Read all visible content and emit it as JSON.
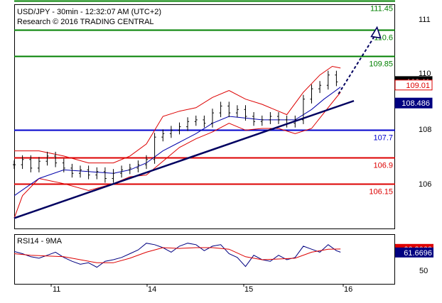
{
  "header": {
    "line1": "USD/JPY - 30min - 12:32:07 AM (UTC+2)",
    "line2": "Research © 2016 TRADING CENTRAL"
  },
  "colors": {
    "resistance": "#008000",
    "pivot": "#0000cc",
    "support": "#dd0000",
    "candles": "#000000",
    "bollinger": "#dd0000",
    "ma_blue": "#0000aa",
    "trendline": "#000060",
    "rsi": "#000080",
    "rsi_ma": "#dd0000"
  },
  "chart_data": [
    {
      "type": "candlestick",
      "title": "USD/JPY - 30min",
      "y_ticks": [
        "111",
        "110",
        "108",
        "106"
      ],
      "x_ticks": [
        "11",
        "14",
        "15",
        "16"
      ],
      "ylim": [
        104.85,
        111.35
      ],
      "levels": [
        {
          "label": "111.45",
          "value": 111.45,
          "kind": "resistance"
        },
        {
          "label": "110.6",
          "value": 110.6,
          "kind": "resistance"
        },
        {
          "label": "109.85",
          "value": 109.85,
          "kind": "resistance"
        },
        {
          "label": "107.7",
          "value": 107.7,
          "kind": "pivot"
        },
        {
          "label": "106.9",
          "value": 106.9,
          "kind": "support"
        },
        {
          "label": "106.15",
          "value": 106.15,
          "kind": "support"
        }
      ],
      "price_boxes": [
        {
          "label": "109.11",
          "value": 109.11,
          "bg": "#000000",
          "fg": "#ffffff"
        },
        {
          "label": "109.01",
          "value": 109.01,
          "bg": "#ffffff",
          "fg": "#dd0000"
        },
        {
          "label": "108.486",
          "value": 108.486,
          "bg": "#000080",
          "fg": "#ffffff"
        }
      ],
      "trendline": {
        "from": [
          0,
          105.15
        ],
        "to": [
          160,
          108.55
        ]
      },
      "forecast_arrow": {
        "from": [
          157,
          108.75
        ],
        "to": [
          175,
          110.6
        ]
      },
      "series": [
        {
          "kind": "candles",
          "points": [
            [
              0,
              106.7
            ],
            [
              4,
              106.85
            ],
            [
              8,
              106.6
            ],
            [
              12,
              106.8
            ],
            [
              16,
              106.95
            ],
            [
              20,
              106.75
            ],
            [
              24,
              106.6
            ],
            [
              28,
              106.45
            ],
            [
              32,
              106.55
            ],
            [
              36,
              106.4
            ],
            [
              40,
              106.5
            ],
            [
              44,
              106.3
            ],
            [
              48,
              106.45
            ],
            [
              52,
              106.55
            ],
            [
              56,
              106.6
            ],
            [
              60,
              106.7
            ],
            [
              64,
              106.85
            ],
            [
              68,
              107.5
            ],
            [
              72,
              107.6
            ],
            [
              76,
              107.7
            ],
            [
              80,
              107.8
            ],
            [
              84,
              107.95
            ],
            [
              88,
              108.0
            ],
            [
              92,
              107.9
            ],
            [
              96,
              108.2
            ],
            [
              100,
              108.4
            ],
            [
              104,
              108.2
            ],
            [
              108,
              108.3
            ],
            [
              112,
              108.1
            ],
            [
              116,
              107.95
            ],
            [
              120,
              108.0
            ],
            [
              124,
              108.1
            ],
            [
              128,
              108.0
            ],
            [
              132,
              107.9
            ],
            [
              136,
              108.0
            ],
            [
              140,
              108.6
            ],
            [
              144,
              108.9
            ],
            [
              148,
              109.0
            ],
            [
              152,
              109.3
            ],
            [
              156,
              109.1
            ]
          ]
        },
        {
          "kind": "bollinger_upper",
          "points": [
            [
              0,
              107.1
            ],
            [
              12,
              107.1
            ],
            [
              24,
              106.95
            ],
            [
              36,
              106.75
            ],
            [
              48,
              106.75
            ],
            [
              56,
              106.95
            ],
            [
              64,
              107.3
            ],
            [
              72,
              108.1
            ],
            [
              80,
              108.25
            ],
            [
              88,
              108.35
            ],
            [
              96,
              108.65
            ],
            [
              104,
              108.85
            ],
            [
              112,
              108.6
            ],
            [
              120,
              108.45
            ],
            [
              132,
              108.15
            ],
            [
              140,
              108.8
            ],
            [
              148,
              109.3
            ],
            [
              154,
              109.55
            ],
            [
              158,
              109.5
            ]
          ]
        },
        {
          "kind": "bollinger_lower",
          "points": [
            [
              0,
              105.15
            ],
            [
              4,
              105.8
            ],
            [
              12,
              106.3
            ],
            [
              24,
              106.15
            ],
            [
              36,
              105.95
            ],
            [
              48,
              106.15
            ],
            [
              56,
              106.35
            ],
            [
              64,
              106.4
            ],
            [
              72,
              106.8
            ],
            [
              80,
              107.2
            ],
            [
              88,
              107.45
            ],
            [
              96,
              107.65
            ],
            [
              104,
              107.9
            ],
            [
              112,
              107.7
            ],
            [
              120,
              107.75
            ],
            [
              128,
              107.75
            ],
            [
              136,
              107.6
            ],
            [
              144,
              107.75
            ],
            [
              150,
              108.2
            ],
            [
              158,
              108.8
            ]
          ]
        },
        {
          "kind": "moving_average",
          "points": [
            [
              0,
              105.8
            ],
            [
              12,
              106.3
            ],
            [
              24,
              106.55
            ],
            [
              36,
              106.5
            ],
            [
              48,
              106.45
            ],
            [
              56,
              106.55
            ],
            [
              64,
              106.75
            ],
            [
              72,
              107.1
            ],
            [
              80,
              107.35
            ],
            [
              88,
              107.6
            ],
            [
              96,
              107.9
            ],
            [
              104,
              108.1
            ],
            [
              112,
              108.05
            ],
            [
              120,
              108.0
            ],
            [
              128,
              108.0
            ],
            [
              136,
              108.0
            ],
            [
              144,
              108.3
            ],
            [
              150,
              108.6
            ],
            [
              158,
              108.95
            ]
          ]
        }
      ]
    },
    {
      "type": "line",
      "title": "RSI14 - 9MA",
      "y_ticks": [
        "50"
      ],
      "ylim": [
        20,
        85
      ],
      "value_boxes": [
        {
          "label": "66.3063",
          "value": 66.3063,
          "bg": "#dd0000",
          "fg": "#ffffff"
        },
        {
          "label": "61.6696",
          "value": 61.6696,
          "bg": "#000080",
          "fg": "#ffffff"
        }
      ],
      "series": [
        {
          "name": "RSI14",
          "points": [
            [
              0,
              63
            ],
            [
              4,
              60
            ],
            [
              8,
              56
            ],
            [
              12,
              54
            ],
            [
              16,
              58
            ],
            [
              20,
              62
            ],
            [
              24,
              55
            ],
            [
              28,
              50
            ],
            [
              32,
              46
            ],
            [
              36,
              48
            ],
            [
              40,
              42
            ],
            [
              44,
              50
            ],
            [
              48,
              52
            ],
            [
              52,
              55
            ],
            [
              56,
              60
            ],
            [
              60,
              65
            ],
            [
              64,
              74
            ],
            [
              68,
              72
            ],
            [
              72,
              68
            ],
            [
              76,
              62
            ],
            [
              80,
              70
            ],
            [
              84,
              74
            ],
            [
              88,
              72
            ],
            [
              92,
              64
            ],
            [
              96,
              70
            ],
            [
              100,
              72
            ],
            [
              104,
              60
            ],
            [
              108,
              55
            ],
            [
              112,
              43
            ],
            [
              116,
              58
            ],
            [
              120,
              52
            ],
            [
              124,
              50
            ],
            [
              128,
              58
            ],
            [
              132,
              52
            ],
            [
              136,
              55
            ],
            [
              140,
              70
            ],
            [
              144,
              66
            ],
            [
              148,
              62
            ],
            [
              152,
              72
            ],
            [
              156,
              64
            ],
            [
              158,
              62
            ]
          ]
        },
        {
          "name": "9MA",
          "points": [
            [
              0,
              60
            ],
            [
              8,
              58
            ],
            [
              16,
              57
            ],
            [
              24,
              56
            ],
            [
              32,
              52
            ],
            [
              40,
              48
            ],
            [
              48,
              48
            ],
            [
              56,
              54
            ],
            [
              64,
              62
            ],
            [
              72,
              68
            ],
            [
              80,
              67
            ],
            [
              88,
              68
            ],
            [
              96,
              68
            ],
            [
              104,
              66
            ],
            [
              112,
              56
            ],
            [
              120,
              52
            ],
            [
              128,
              53
            ],
            [
              136,
              54
            ],
            [
              144,
              62
            ],
            [
              152,
              66
            ],
            [
              158,
              66.3
            ]
          ]
        }
      ]
    }
  ]
}
